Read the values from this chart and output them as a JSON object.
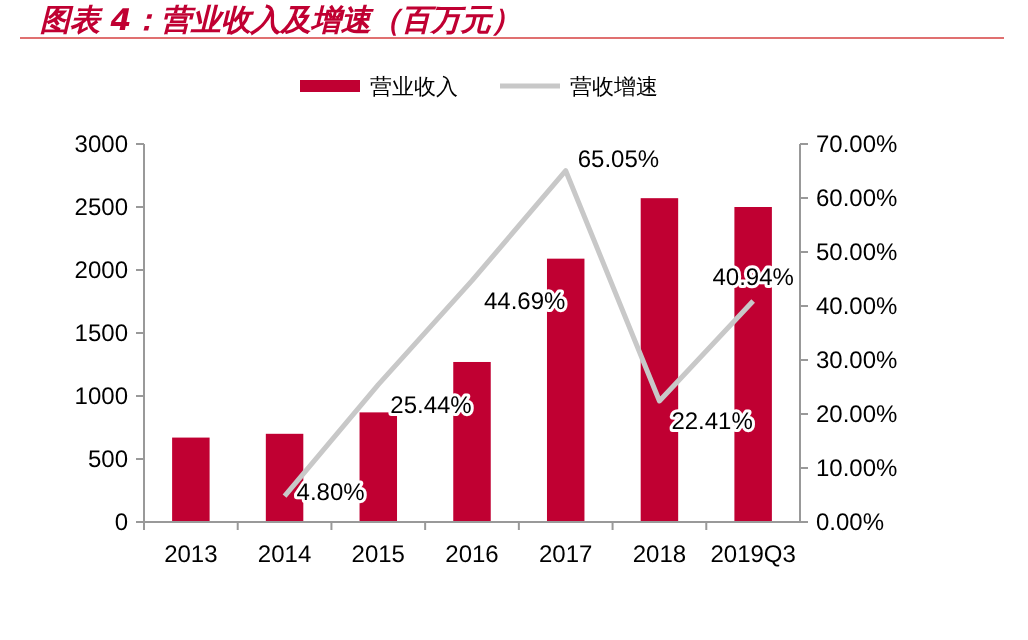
{
  "chart_data": {
    "type": "bar",
    "title": "图表 4：营业收入及增速（百万元）",
    "categories": [
      "2013",
      "2014",
      "2015",
      "2016",
      "2017",
      "2018",
      "2019Q3"
    ],
    "series": [
      {
        "name": "营业收入",
        "color": "#c00032",
        "values": [
          670,
          700,
          870,
          1270,
          2090,
          2570,
          2500
        ]
      },
      {
        "name": "营收增速",
        "type": "line",
        "axis": "y2",
        "color": "#c8c8c8",
        "values": [
          null,
          4.8,
          25.44,
          44.69,
          65.05,
          22.41,
          40.94
        ],
        "value_labels": [
          null,
          "4.80%",
          "25.44%",
          "44.69%",
          "65.05%",
          "22.41%",
          "40.94%"
        ]
      }
    ],
    "ylim": [
      0,
      3000
    ],
    "yticks": [
      0,
      500,
      1000,
      1500,
      2000,
      2500,
      3000
    ],
    "y2lim": [
      0,
      70
    ],
    "y2ticks": [
      {
        "value": 0,
        "label": "0.00%"
      },
      {
        "value": 10,
        "label": "10.00%"
      },
      {
        "value": 20,
        "label": "20.00%"
      },
      {
        "value": 30,
        "label": "30.00%"
      },
      {
        "value": 40,
        "label": "40.00%"
      },
      {
        "value": 50,
        "label": "50.00%"
      },
      {
        "value": 60,
        "label": "60.00%"
      },
      {
        "value": 70,
        "label": "70.00%"
      }
    ],
    "legend": "top",
    "grid": false
  }
}
